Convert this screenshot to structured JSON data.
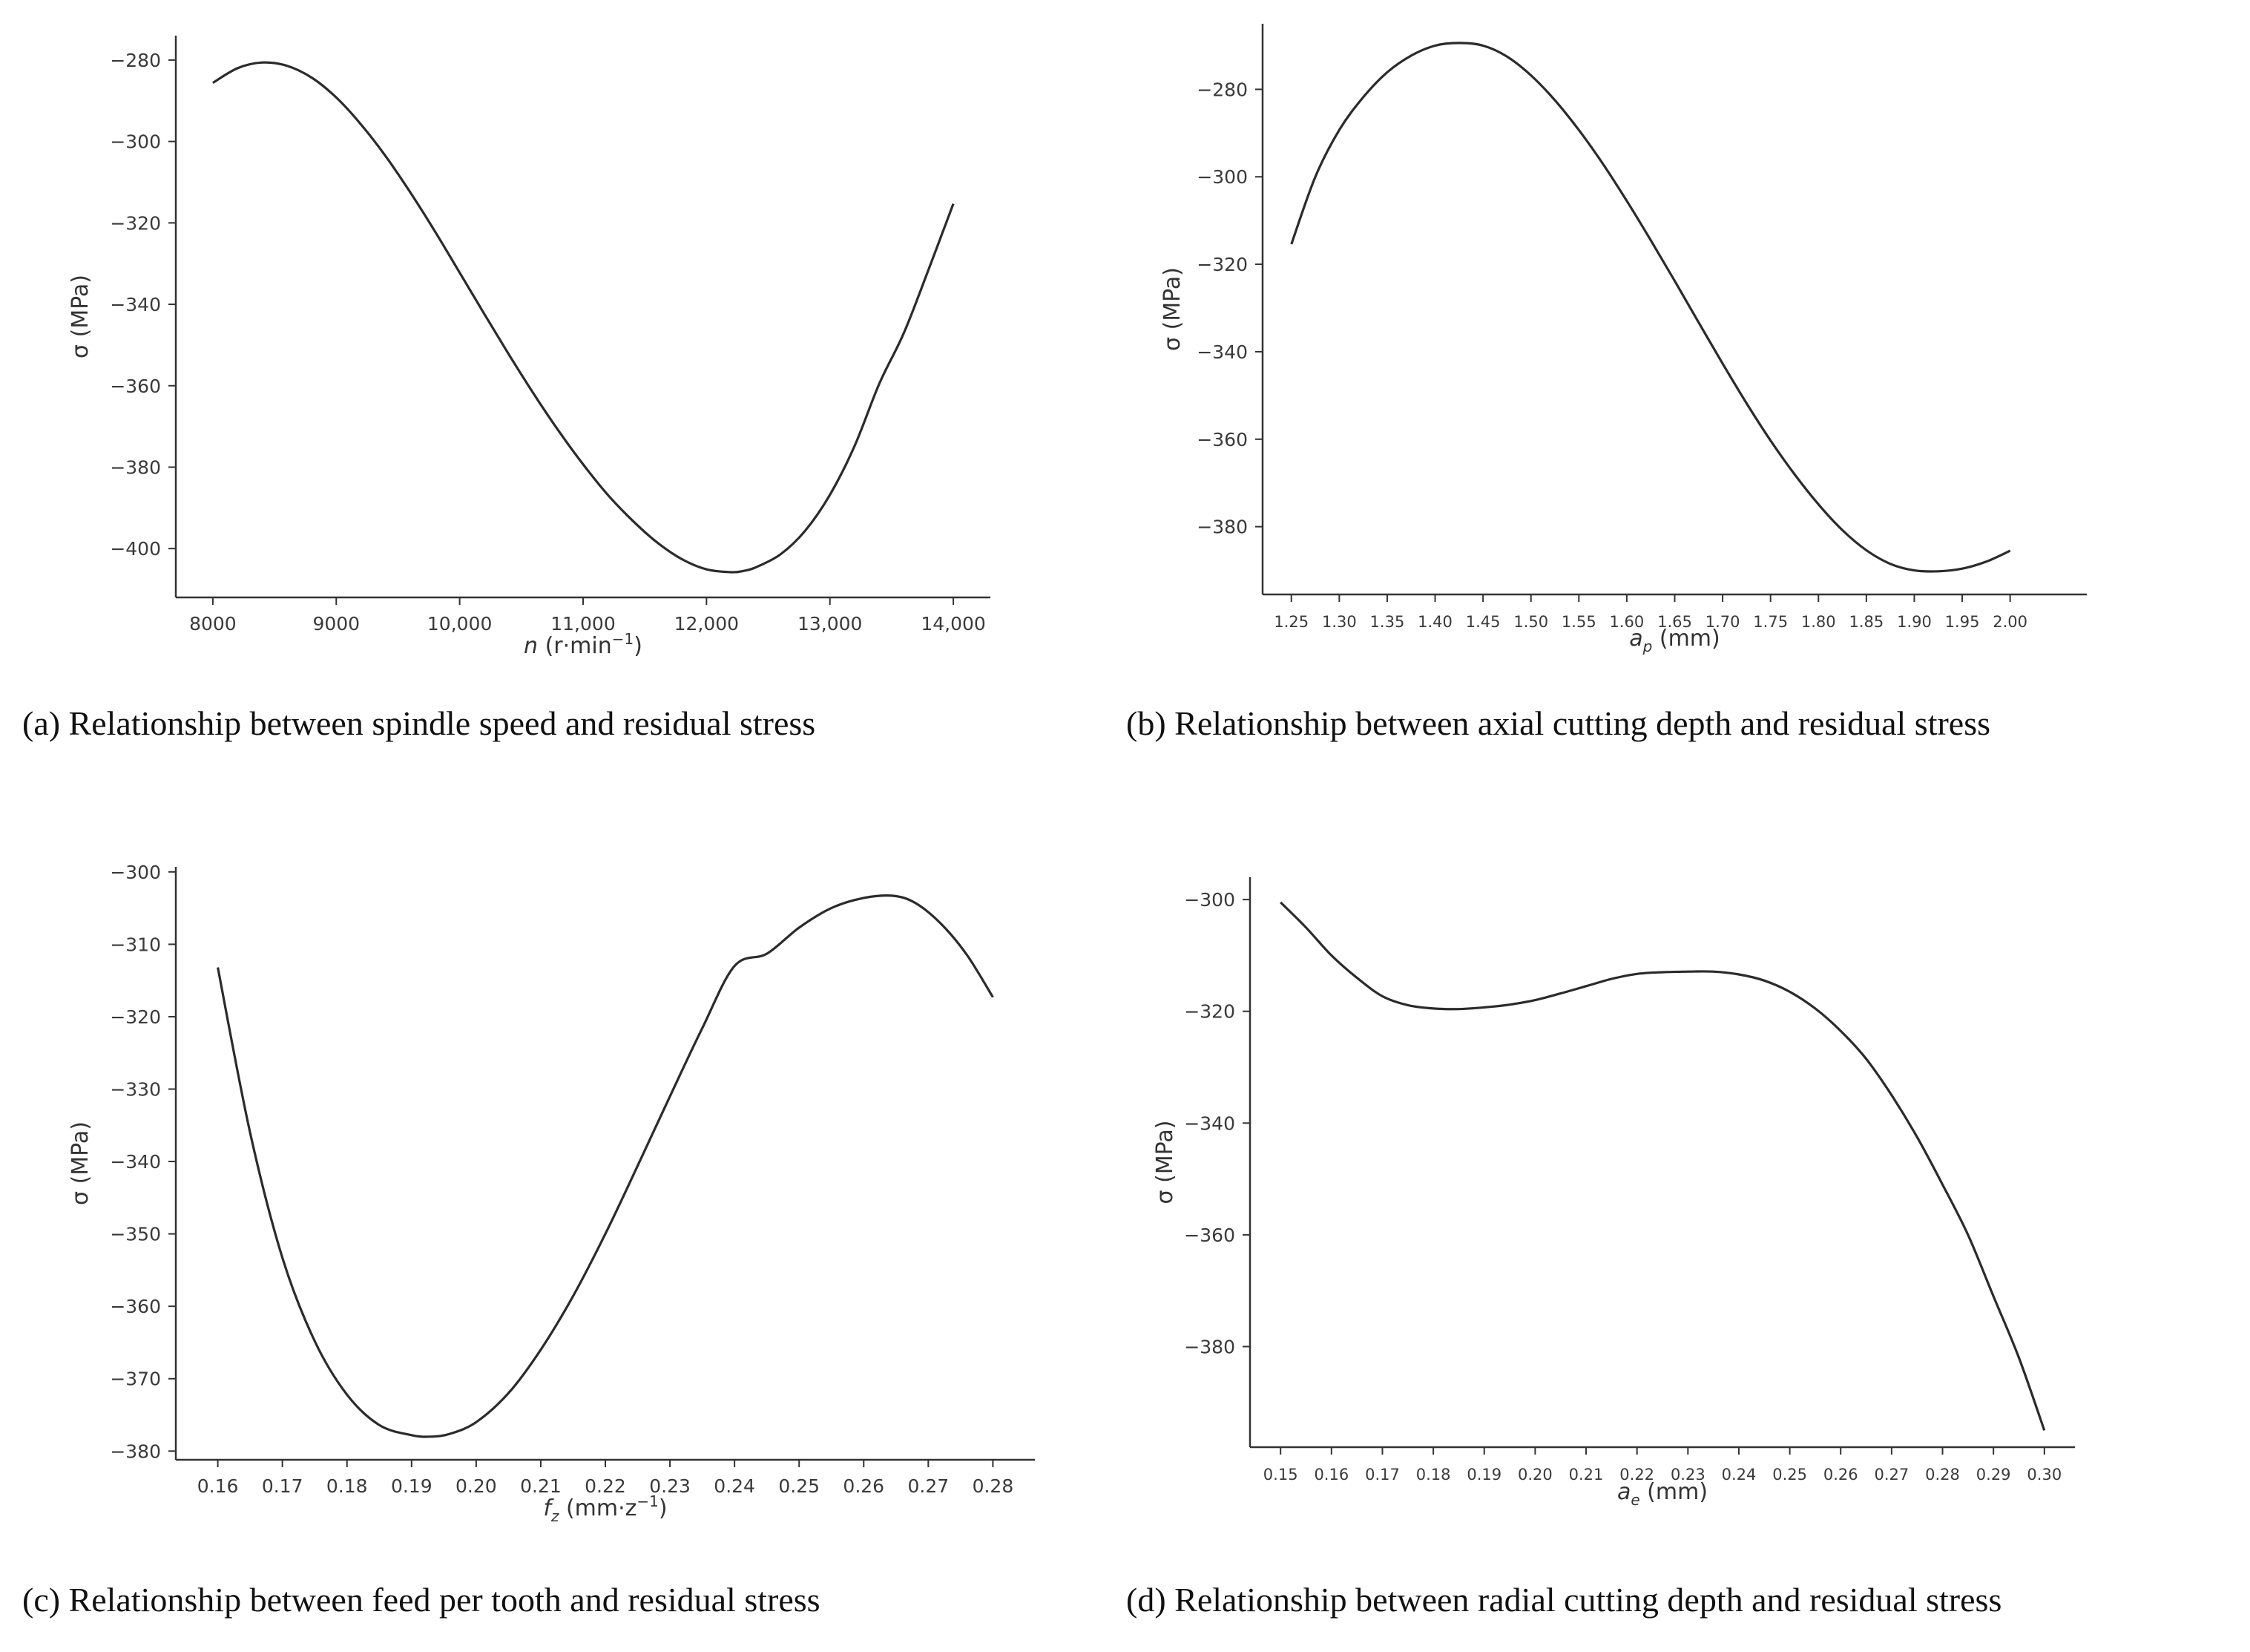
{
  "chart_data": [
    {
      "type": "line",
      "caption": "(a) Relationship between spindle speed  and residual stress",
      "xlabel_var": "n",
      "xlabel_rest": " (r·min",
      "xlabel_sup": "−1",
      "xlabel_end": ")",
      "ylabel": "σ (MPa)",
      "xlim": [
        7700,
        14300
      ],
      "ylim": [
        -412,
        -274
      ],
      "xticks": [
        8000,
        9000,
        10000,
        11000,
        12000,
        13000,
        14000
      ],
      "xtick_labels": [
        "8000",
        "9000",
        "10,000",
        "11,000",
        "12,000",
        "13,000",
        "14,000"
      ],
      "yticks": [
        -280,
        -300,
        -320,
        -340,
        -360,
        -380,
        -400
      ],
      "ytick_labels": [
        "−280",
        "−300",
        "−320",
        "−340",
        "−360",
        "−380",
        "−400"
      ],
      "series": [
        {
          "x": [
            8000,
            8200,
            8400,
            8600,
            8800,
            9000,
            9200,
            9400,
            9600,
            9800,
            10000,
            10200,
            10400,
            10600,
            10800,
            11000,
            11200,
            11400,
            11600,
            11800,
            12000,
            12200,
            12300,
            12400,
            12600,
            12800,
            13000,
            13200,
            13400,
            13600,
            13800,
            14000
          ],
          "y": [
            -285.6,
            -282.0,
            -280.6,
            -281.4,
            -284.3,
            -289.2,
            -295.8,
            -303.6,
            -312.5,
            -322.1,
            -332.2,
            -342.4,
            -352.4,
            -362.0,
            -371.0,
            -379.3,
            -386.8,
            -393.1,
            -398.5,
            -402.6,
            -405.1,
            -405.8,
            -405.5,
            -404.6,
            -401.4,
            -395.6,
            -386.8,
            -374.8,
            -359.5,
            -347.0,
            -331.4,
            -315.3
          ]
        }
      ]
    },
    {
      "type": "line",
      "caption": "(b) Relationship between axial cutting depth and residual stress",
      "xlabel_var": "a",
      "xlabel_sub": "p",
      "xlabel_rest": " (mm)",
      "ylabel": "σ (MPa)",
      "xlim": [
        1.22,
        2.08
      ],
      "ylim": [
        -395.5,
        -265
      ],
      "xticks": [
        1.25,
        1.3,
        1.35,
        1.4,
        1.45,
        1.5,
        1.55,
        1.6,
        1.65,
        1.7,
        1.75,
        1.8,
        1.85,
        1.9,
        1.95,
        2.0
      ],
      "xtick_labels": [
        "1.25",
        "1.30",
        "1.35",
        "1.40",
        "1.45",
        "1.50",
        "1.55",
        "1.60",
        "1.65",
        "1.70",
        "1.75",
        "1.80",
        "1.85",
        "1.90",
        "1.95",
        "2.00"
      ],
      "yticks": [
        -280,
        -300,
        -320,
        -340,
        -360,
        -380
      ],
      "ytick_labels": [
        "−280",
        "−300",
        "−320",
        "−340",
        "−360",
        "−380"
      ],
      "series": [
        {
          "x": [
            1.25,
            1.275,
            1.3,
            1.325,
            1.35,
            1.375,
            1.4,
            1.425,
            1.45,
            1.475,
            1.5,
            1.525,
            1.55,
            1.575,
            1.6,
            1.625,
            1.65,
            1.675,
            1.7,
            1.725,
            1.75,
            1.775,
            1.8,
            1.825,
            1.85,
            1.875,
            1.9,
            1.925,
            1.95,
            1.975,
            2.0
          ],
          "y": [
            -315.4,
            -300.0,
            -289.3,
            -281.8,
            -276.1,
            -272.3,
            -270.0,
            -269.4,
            -270.0,
            -272.5,
            -276.8,
            -282.5,
            -289.3,
            -297.0,
            -305.5,
            -314.5,
            -323.8,
            -333.3,
            -342.7,
            -351.8,
            -360.3,
            -368.0,
            -374.9,
            -380.8,
            -385.4,
            -388.5,
            -390.0,
            -390.2,
            -389.6,
            -388.0,
            -385.5
          ]
        }
      ]
    },
    {
      "type": "line",
      "caption": "(c) Relationship between feed per tooth  and residual stress",
      "xlabel_var": "f",
      "xlabel_sub": "z",
      "xlabel_rest": " (mm·z",
      "xlabel_sup": "−1",
      "xlabel_end": ")",
      "ylabel": "σ (MPa)",
      "xlim": [
        0.1535,
        0.2865
      ],
      "ylim": [
        -381.2,
        -299.3
      ],
      "xticks": [
        0.16,
        0.17,
        0.18,
        0.19,
        0.2,
        0.21,
        0.22,
        0.23,
        0.24,
        0.25,
        0.26,
        0.27,
        0.28
      ],
      "xtick_labels": [
        "0.16",
        "0.17",
        "0.18",
        "0.19",
        "0.20",
        "0.21",
        "0.22",
        "0.23",
        "0.24",
        "0.25",
        "0.26",
        "0.27",
        "0.28"
      ],
      "yticks": [
        -300,
        -310,
        -320,
        -330,
        -340,
        -350,
        -360,
        -370,
        -380
      ],
      "ytick_labels": [
        "−300",
        "−310",
        "−320",
        "−330",
        "−340",
        "−350",
        "−360",
        "−370",
        "−380"
      ],
      "series": [
        {
          "x": [
            0.16,
            0.165,
            0.17,
            0.175,
            0.18,
            0.185,
            0.19,
            0.193,
            0.196,
            0.2,
            0.205,
            0.21,
            0.215,
            0.22,
            0.225,
            0.23,
            0.235,
            0.24,
            0.245,
            0.25,
            0.255,
            0.26,
            0.2645,
            0.268,
            0.272,
            0.276,
            0.28
          ],
          "y": [
            -313.2,
            -336.0,
            -353.3,
            -364.8,
            -372.2,
            -376.4,
            -377.8,
            -378.0,
            -377.6,
            -376.0,
            -372.0,
            -366.0,
            -358.6,
            -350.0,
            -340.6,
            -331.0,
            -321.6,
            -313.0,
            -311.3,
            -307.7,
            -305.0,
            -303.6,
            -303.3,
            -304.3,
            -307.2,
            -311.5,
            -317.3
          ]
        }
      ]
    },
    {
      "type": "line",
      "caption": "(d) Relationship between radial cutting depth  and residual stress",
      "xlabel_var": "a",
      "xlabel_sub": "e",
      "xlabel_rest": " (mm)",
      "ylabel": "σ (MPa)",
      "xlim": [
        0.144,
        0.306
      ],
      "ylim": [
        -398,
        -296
      ],
      "xticks": [
        0.15,
        0.16,
        0.17,
        0.18,
        0.19,
        0.2,
        0.21,
        0.22,
        0.23,
        0.24,
        0.25,
        0.26,
        0.27,
        0.28,
        0.29,
        0.3
      ],
      "xtick_labels": [
        "0.15",
        "0.16",
        "0.17",
        "0.18",
        "0.19",
        "0.20",
        "0.21",
        "0.22",
        "0.23",
        "0.24",
        "0.25",
        "0.26",
        "0.27",
        "0.28",
        "0.29",
        "0.30"
      ],
      "yticks": [
        -300,
        -320,
        -340,
        -360,
        -380
      ],
      "ytick_labels": [
        "−300",
        "−320",
        "−340",
        "−360",
        "−380"
      ],
      "series": [
        {
          "x": [
            0.15,
            0.155,
            0.16,
            0.165,
            0.17,
            0.175,
            0.18,
            0.185,
            0.19,
            0.195,
            0.2,
            0.205,
            0.21,
            0.215,
            0.22,
            0.225,
            0.23,
            0.235,
            0.24,
            0.245,
            0.25,
            0.255,
            0.26,
            0.265,
            0.27,
            0.275,
            0.28,
            0.285,
            0.29,
            0.295,
            0.3
          ],
          "y": [
            -300.5,
            -305.0,
            -310.0,
            -314.0,
            -317.3,
            -318.9,
            -319.5,
            -319.6,
            -319.3,
            -318.8,
            -318.0,
            -316.8,
            -315.5,
            -314.2,
            -313.3,
            -313.0,
            -312.9,
            -312.9,
            -313.4,
            -314.5,
            -316.5,
            -319.5,
            -323.5,
            -328.5,
            -335.0,
            -342.5,
            -351.0,
            -360.0,
            -371.0,
            -382.0,
            -395.0
          ]
        }
      ]
    }
  ]
}
